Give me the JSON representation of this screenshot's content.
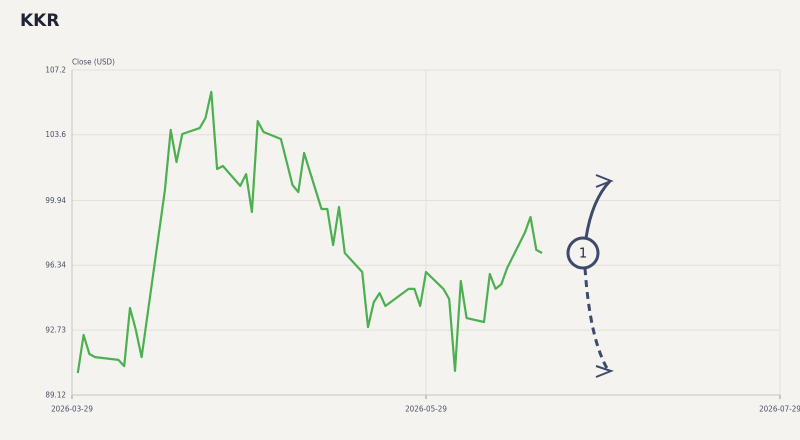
{
  "chart_data": {
    "type": "line",
    "title": "KKR",
    "y_label": "Close (USD)",
    "annotation": "1",
    "x": [
      "2026-03-30",
      "2026-03-31",
      "2026-04-01",
      "2026-04-02",
      "2026-04-06",
      "2026-04-07",
      "2026-04-08",
      "2026-04-09",
      "2026-04-10",
      "2026-04-14",
      "2026-04-15",
      "2026-04-16",
      "2026-04-17",
      "2026-04-20",
      "2026-04-21",
      "2026-04-22",
      "2026-04-23",
      "2026-04-24",
      "2026-04-27",
      "2026-04-28",
      "2026-04-29",
      "2026-04-30",
      "2026-05-01",
      "2026-05-04",
      "2026-05-06",
      "2026-05-07",
      "2026-05-08",
      "2026-05-11",
      "2026-05-12",
      "2026-05-13",
      "2026-05-14",
      "2026-05-15",
      "2026-05-18",
      "2026-05-19",
      "2026-05-20",
      "2026-05-21",
      "2026-05-22",
      "2026-05-26",
      "2026-05-27",
      "2026-05-28",
      "2026-05-29",
      "2026-06-01",
      "2026-06-02",
      "2026-06-03",
      "2026-06-04",
      "2026-06-05",
      "2026-06-08",
      "2026-06-09",
      "2026-06-10",
      "2026-06-11",
      "2026-06-12",
      "2026-06-15",
      "2026-06-16",
      "2026-06-17",
      "2026-06-18"
    ],
    "series": [
      {
        "name": "KKR",
        "color": "#4caf50",
        "values": [
          90.34,
          92.46,
          91.4,
          91.23,
          91.07,
          90.73,
          93.96,
          92.74,
          91.23,
          100.52,
          103.86,
          102.08,
          103.64,
          103.97,
          104.53,
          105.98,
          101.69,
          101.86,
          100.75,
          101.41,
          99.3,
          104.36,
          103.75,
          103.36,
          100.8,
          100.41,
          102.58,
          99.47,
          99.47,
          97.46,
          99.58,
          97.02,
          95.96,
          92.9,
          94.29,
          94.79,
          94.07,
          95.02,
          95.02,
          94.07,
          95.96,
          95.02,
          94.46,
          90.46,
          95.46,
          93.4,
          93.18,
          95.85,
          95.02,
          95.29,
          96.19,
          98.13,
          99.02,
          97.19,
          97.02
        ]
      }
    ],
    "xlim": [
      "2026-03-29",
      "2026-07-29"
    ],
    "xticks": [
      "2026-03-29",
      "2026-05-29",
      "2026-07-29"
    ],
    "ylim": [
      89.12,
      107.2
    ],
    "yticks": [
      89.12,
      92.73,
      96.34,
      99.94,
      103.6,
      107.2
    ],
    "grid": true
  }
}
